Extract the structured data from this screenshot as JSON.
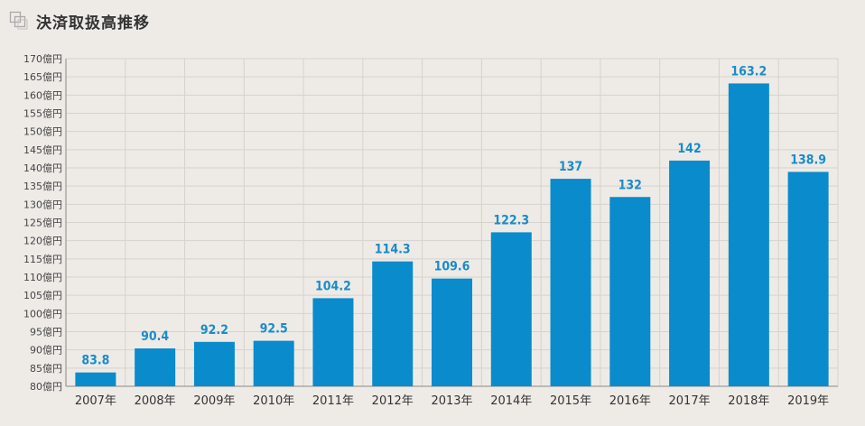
{
  "header": {
    "title": "決済取扱高推移",
    "icon": "overlapping-squares-icon"
  },
  "colors": {
    "bar": "#0a8bcc",
    "value_label": "#1a8cc9",
    "grid": "#d6d2cd",
    "axis": "#8a8a8a",
    "background": "#eeebe7"
  },
  "chart_data": {
    "type": "bar",
    "categories": [
      "2007年",
      "2008年",
      "2009年",
      "2010年",
      "2011年",
      "2012年",
      "2013年",
      "2014年",
      "2015年",
      "2016年",
      "2017年",
      "2018年",
      "2019年"
    ],
    "values": [
      83.8,
      90.4,
      92.2,
      92.5,
      104.2,
      114.3,
      109.6,
      122.3,
      137,
      132,
      142,
      163.2,
      138.9
    ],
    "value_labels": [
      "83.8",
      "90.4",
      "92.2",
      "92.5",
      "104.2",
      "114.3",
      "109.6",
      "122.3",
      "137",
      "132",
      "142",
      "163.2",
      "138.9"
    ],
    "ylim": [
      80,
      170
    ],
    "ytick_step": 5,
    "ytick_suffix": "億円",
    "grid": true,
    "title": "決済取扱高推移",
    "xlabel": "",
    "ylabel": ""
  }
}
